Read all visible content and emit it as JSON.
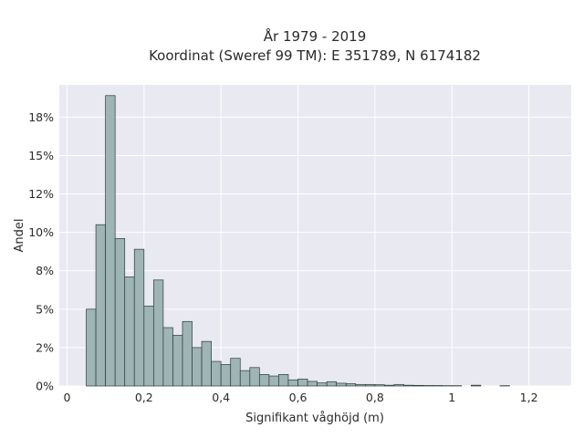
{
  "chart_data": {
    "type": "bar",
    "title_line1": "År 1979 - 2019",
    "title_line2": "Koordinat (Sweref 99 TM): E 351789, N 6174182",
    "xlabel": "Signifikant våghöjd (m)",
    "ylabel": "Andel",
    "xlim": [
      -0.02,
      1.31
    ],
    "ylim": [
      0,
      19.6
    ],
    "x_ticks": [
      0,
      0.2,
      0.4,
      0.6,
      0.8,
      1.0,
      1.2
    ],
    "x_tick_labels": [
      "0",
      "0,2",
      "0,4",
      "0,6",
      "0,8",
      "1",
      "1,2"
    ],
    "y_ticks": [
      0,
      2.5,
      5,
      7.5,
      10,
      12.5,
      15,
      17.5
    ],
    "y_tick_labels": [
      "0%",
      "2%",
      "5%",
      "8%",
      "10%",
      "12%",
      "15%",
      "18%"
    ],
    "grid": true,
    "bar_color": "#9db5b4",
    "bar_edge_color": "#2f3b3a",
    "plot_background": "#e9e9f1",
    "bin_width": 0.025,
    "x_start": 0.05,
    "values": [
      5.0,
      10.5,
      18.9,
      9.6,
      7.1,
      8.9,
      5.2,
      6.9,
      3.8,
      3.3,
      4.2,
      2.5,
      2.9,
      1.6,
      1.4,
      1.8,
      1.0,
      1.2,
      0.75,
      0.65,
      0.75,
      0.4,
      0.45,
      0.3,
      0.2,
      0.28,
      0.18,
      0.15,
      0.1,
      0.1,
      0.08,
      0.05,
      0.1,
      0.05,
      0.04,
      0.03,
      0.03,
      0.02,
      0.02,
      0.0,
      0.05,
      0.0,
      0.0,
      0.02
    ]
  }
}
